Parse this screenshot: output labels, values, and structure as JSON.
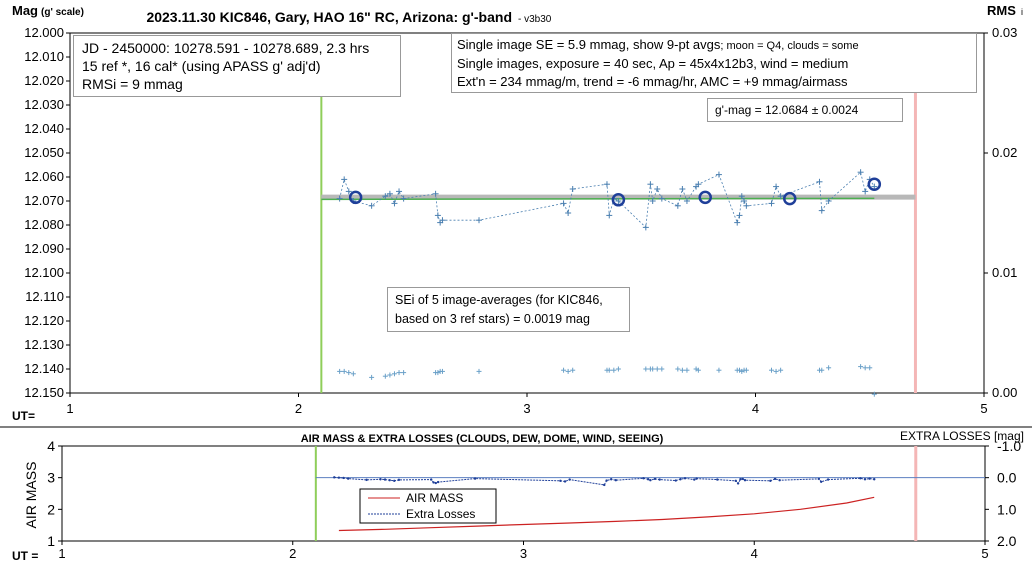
{
  "title": "2023.11.30 KIC846, Gary, HAO 16\" RC, Arizona: g'-band",
  "version": "- v3b30",
  "left_axis_label": "Mag",
  "left_axis_unit": "(g' scale)",
  "right_axis_label": "RMS",
  "right_axis_suffix": "i",
  "ut_label_top": "UT=",
  "ut_label_bottom": "UT =",
  "info_left": {
    "line1": "JD - 2450000: 10278.591 - 10278.689, 2.3 hrs",
    "line2": "15 ref *, 16 cal* (using APASS g' adj'd)",
    "line3": "RMSi = 9 mmag"
  },
  "info_right": {
    "line1a": "Single image SE = 5.9 mmag, show  9-pt avgs",
    "line1b": "; moon = Q4, clouds = some",
    "line2": "Single images, exposure = 40 sec, Ap = 45x4x12b3, wind = medium",
    "line3": "Ext'n = 234 mmag/m, trend = -6 mmag/hr, AMC = +9 mmag/airmass"
  },
  "gmag_box": "g'-mag = 12.0684 ± 0.0024",
  "sei_box": {
    "line1": "SEi of 5 image-averages (for KIC846,",
    "line2": "based on 3 ref stars) = 0.0019 mag"
  },
  "lower_title": "AIR MASS & EXTRA LOSSES (CLOUDS, DEW, DOME, WIND, SEEING)",
  "lower_left_label": "AIR MASS",
  "lower_right_label": "EXTRA LOSSES [mag]",
  "lower_legend": [
    "AIR MASS",
    "Extra Losses"
  ],
  "colors": {
    "points": "#4a7fb0",
    "avg_circle": "#1f3f99",
    "mean_band": "#b8b8b8",
    "trend_line": "#4caf50",
    "start_marker": "#8fce5a",
    "end_marker": "#f4b6b6",
    "airmass": "#cc2222",
    "extra_losses": "#1f3f99"
  },
  "chart_data": [
    {
      "type": "scatter",
      "name": "upper",
      "xlim": [
        1,
        5
      ],
      "ylim": [
        12.15,
        12.0
      ],
      "y2lim": [
        0.0,
        0.03
      ],
      "x_ticks": [
        "1",
        "2",
        "3",
        "4",
        "5"
      ],
      "y_ticks": [
        "12.000",
        "12.010",
        "12.020",
        "12.030",
        "12.040",
        "12.050",
        "12.060",
        "12.070",
        "12.080",
        "12.090",
        "12.100",
        "12.110",
        "12.120",
        "12.130",
        "12.140",
        "12.150"
      ],
      "y2_ticks": [
        "0.00",
        "0.01",
        "0.02",
        "0.03"
      ],
      "start_ut": 2.1,
      "end_ut": 4.7,
      "mean_mag": 12.0684,
      "trend": [
        [
          2.1,
          12.0693
        ],
        [
          4.52,
          12.0689
        ]
      ],
      "series": [
        {
          "name": "single images",
          "x": [
            2.18,
            2.2,
            2.22,
            2.24,
            2.32,
            2.38,
            2.4,
            2.42,
            2.44,
            2.46,
            2.6,
            2.61,
            2.62,
            2.63,
            2.79,
            3.16,
            3.18,
            3.2,
            3.35,
            3.36,
            3.38,
            3.4,
            3.52,
            3.54,
            3.55,
            3.57,
            3.59,
            3.66,
            3.68,
            3.7,
            3.74,
            3.75,
            3.84,
            3.92,
            3.93,
            3.94,
            3.95,
            3.96,
            4.07,
            4.09,
            4.11,
            4.28,
            4.29,
            4.32,
            4.46,
            4.48,
            4.5,
            4.52
          ],
          "y": [
            12.069,
            12.061,
            12.066,
            12.07,
            12.072,
            12.068,
            12.067,
            12.071,
            12.066,
            12.069,
            12.067,
            12.076,
            12.079,
            12.078,
            12.078,
            12.071,
            12.075,
            12.065,
            12.063,
            12.076,
            12.069,
            12.07,
            12.081,
            12.063,
            12.07,
            12.065,
            12.069,
            12.072,
            12.065,
            12.07,
            12.064,
            12.063,
            12.059,
            12.079,
            12.076,
            12.068,
            12.07,
            12.072,
            12.071,
            12.064,
            12.068,
            12.062,
            12.074,
            12.07,
            12.058,
            12.066,
            12.061,
            12.064
          ]
        },
        {
          "name": "9-pt avgs",
          "x": [
            2.25,
            3.4,
            3.78,
            4.15,
            4.52
          ],
          "y": [
            12.0685,
            12.0695,
            12.0685,
            12.069,
            12.063
          ]
        },
        {
          "name": "RMSi",
          "x": [
            2.18,
            2.2,
            2.22,
            2.24,
            2.32,
            2.38,
            2.4,
            2.42,
            2.44,
            2.46,
            2.6,
            2.61,
            2.62,
            2.63,
            2.79,
            3.16,
            3.18,
            3.2,
            3.35,
            3.36,
            3.38,
            3.4,
            3.52,
            3.54,
            3.55,
            3.57,
            3.59,
            3.66,
            3.68,
            3.7,
            3.74,
            3.75,
            3.84,
            3.92,
            3.93,
            3.94,
            3.95,
            3.96,
            4.07,
            4.09,
            4.11,
            4.28,
            4.29,
            4.32,
            4.46,
            4.48,
            4.5,
            4.52
          ],
          "y2": [
            0.0018,
            0.0018,
            0.0017,
            0.0016,
            0.0013,
            0.0014,
            0.0015,
            0.0016,
            0.0017,
            0.0017,
            0.0017,
            0.0017,
            0.0018,
            0.0018,
            0.0018,
            0.0019,
            0.0018,
            0.0019,
            0.0019,
            0.0019,
            0.0019,
            0.002,
            0.002,
            0.002,
            0.002,
            0.002,
            0.002,
            0.002,
            0.0019,
            0.0019,
            0.002,
            0.0019,
            0.0019,
            0.0019,
            0.0019,
            0.0018,
            0.0019,
            0.0019,
            0.0019,
            0.0018,
            0.0019,
            0.0019,
            0.0019,
            0.0021,
            0.0022,
            0.0021,
            0.0021,
            -0.0001
          ]
        }
      ]
    },
    {
      "type": "line",
      "name": "lower",
      "xlim": [
        1,
        5
      ],
      "ylim": [
        1,
        4
      ],
      "y2lim": [
        2.0,
        -1.0
      ],
      "x_ticks": [
        "1",
        "2",
        "3",
        "4",
        "5"
      ],
      "y_ticks": [
        "1",
        "2",
        "3",
        "4"
      ],
      "y2_ticks": [
        "2.0",
        "1.0",
        "0.0",
        "-1.0"
      ],
      "start_ut": 2.1,
      "end_ut": 4.7,
      "series": [
        {
          "name": "AIR MASS",
          "x": [
            2.2,
            2.4,
            2.6,
            2.8,
            3.0,
            3.2,
            3.4,
            3.6,
            3.8,
            4.0,
            4.2,
            4.4,
            4.52
          ],
          "y": [
            1.33,
            1.37,
            1.42,
            1.47,
            1.52,
            1.57,
            1.62,
            1.68,
            1.76,
            1.86,
            2.0,
            2.2,
            2.38
          ]
        },
        {
          "name": "Extra Losses",
          "x": [
            2.18,
            2.2,
            2.22,
            2.24,
            2.32,
            2.38,
            2.4,
            2.42,
            2.44,
            2.46,
            2.6,
            2.61,
            2.62,
            2.63,
            2.79,
            3.16,
            3.18,
            3.2,
            3.35,
            3.36,
            3.38,
            3.4,
            3.52,
            3.54,
            3.55,
            3.57,
            3.59,
            3.66,
            3.68,
            3.7,
            3.74,
            3.75,
            3.84,
            3.92,
            3.93,
            3.94,
            3.95,
            3.96,
            4.07,
            4.09,
            4.11,
            4.28,
            4.29,
            4.32,
            4.46,
            4.48,
            4.5,
            4.52
          ],
          "y2": [
            -0.01,
            0.0,
            0.01,
            0.03,
            0.07,
            0.05,
            0.06,
            0.08,
            0.1,
            0.07,
            0.06,
            0.15,
            0.17,
            0.14,
            0.03,
            0.1,
            0.12,
            0.06,
            0.23,
            0.09,
            0.05,
            0.08,
            0.02,
            0.05,
            0.08,
            0.04,
            0.06,
            0.09,
            0.05,
            0.02,
            0.06,
            0.03,
            0.06,
            0.1,
            0.18,
            0.05,
            0.04,
            0.08,
            0.1,
            0.04,
            0.08,
            0.04,
            0.13,
            0.06,
            0.02,
            0.05,
            0.03,
            0.05
          ]
        }
      ]
    }
  ]
}
